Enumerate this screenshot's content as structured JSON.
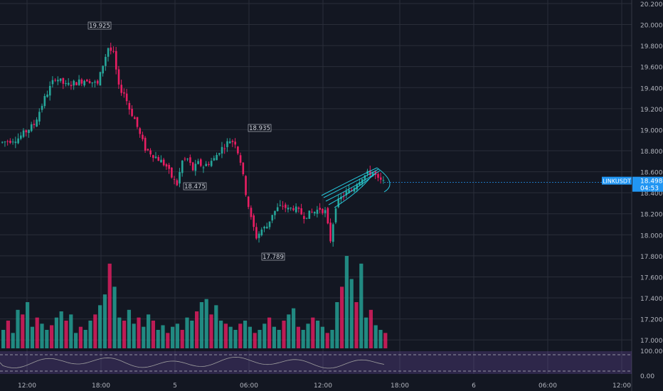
{
  "chart_data": {
    "type": "candlestick",
    "symbol_label": "LINKUSDT",
    "last_price": "18.498",
    "countdown": "04:53",
    "y_ticks": [
      "20.200",
      "20.000",
      "19.800",
      "19.600",
      "19.400",
      "19.200",
      "19.000",
      "18.800",
      "18.600",
      "18.400",
      "18.200",
      "18.000",
      "17.800",
      "17.600",
      "17.400",
      "17.200",
      "17.000"
    ],
    "x_ticks": [
      "12:00",
      "18:00",
      "5",
      "06:00",
      "12:00",
      "18:00",
      "6",
      "06:00",
      "12:00"
    ],
    "ylim": [
      16.92,
      20.22
    ],
    "annotations": {
      "high_1": "19.925",
      "low_1": "18.475",
      "high_2": "18.935",
      "low_2": "17.789"
    },
    "close_path": [
      [
        0,
        18.88
      ],
      [
        3,
        18.92
      ],
      [
        6,
        19.05
      ],
      [
        8,
        19.3
      ],
      [
        10,
        19.5
      ],
      [
        12,
        19.42
      ],
      [
        14,
        19.45
      ],
      [
        16,
        19.48
      ],
      [
        18,
        19.43
      ],
      [
        19,
        19.62
      ],
      [
        20,
        19.78
      ],
      [
        21,
        19.72
      ],
      [
        22,
        19.4
      ],
      [
        23,
        19.35
      ],
      [
        24,
        19.2
      ],
      [
        25,
        19.1
      ],
      [
        26,
        18.95
      ],
      [
        27,
        18.82
      ],
      [
        28,
        18.78
      ],
      [
        30,
        18.7
      ],
      [
        31,
        18.65
      ],
      [
        32,
        18.55
      ],
      [
        33,
        18.48
      ],
      [
        34,
        18.7
      ],
      [
        35,
        18.72
      ],
      [
        36,
        18.62
      ],
      [
        37,
        18.68
      ],
      [
        38,
        18.65
      ],
      [
        40,
        18.72
      ],
      [
        41,
        18.8
      ],
      [
        42,
        18.85
      ],
      [
        43,
        18.9
      ],
      [
        44,
        18.88
      ],
      [
        45,
        18.7
      ],
      [
        46,
        18.4
      ],
      [
        47,
        18.15
      ],
      [
        48,
        17.98
      ],
      [
        49,
        18.05
      ],
      [
        50,
        18.08
      ],
      [
        51,
        18.2
      ],
      [
        52,
        18.25
      ],
      [
        53,
        18.28
      ],
      [
        54,
        18.24
      ],
      [
        55,
        18.26
      ],
      [
        56,
        18.22
      ],
      [
        57,
        18.18
      ],
      [
        58,
        18.2
      ],
      [
        59,
        18.22
      ],
      [
        60,
        18.25
      ],
      [
        61,
        18.22
      ],
      [
        62,
        17.95
      ],
      [
        63,
        18.28
      ],
      [
        64,
        18.35
      ],
      [
        65,
        18.4
      ],
      [
        66,
        18.42
      ],
      [
        67,
        18.5
      ],
      [
        68,
        18.55
      ],
      [
        69,
        18.58
      ],
      [
        70,
        18.6
      ],
      [
        71,
        18.52
      ],
      [
        72,
        18.498
      ]
    ],
    "volume": [
      12,
      18,
      10,
      25,
      22,
      30,
      14,
      20,
      16,
      12,
      15,
      20,
      24,
      18,
      22,
      10,
      14,
      12,
      18,
      22,
      28,
      35,
      55,
      40,
      20,
      18,
      25,
      16,
      20,
      14,
      22,
      18,
      12,
      15,
      10,
      14,
      16,
      12,
      20,
      18,
      24,
      30,
      32,
      22,
      28,
      18,
      16,
      14,
      12,
      16,
      18,
      14,
      10,
      12,
      16,
      20,
      14,
      12,
      18,
      22,
      26,
      14,
      12,
      16,
      20,
      18,
      14,
      10,
      12,
      30,
      40,
      60,
      45,
      30,
      55,
      20,
      25,
      15,
      12,
      10
    ],
    "oscillator": {
      "ticks": [
        "100.00",
        "0.00"
      ],
      "upper_band": 80,
      "lower_band": 20
    }
  }
}
